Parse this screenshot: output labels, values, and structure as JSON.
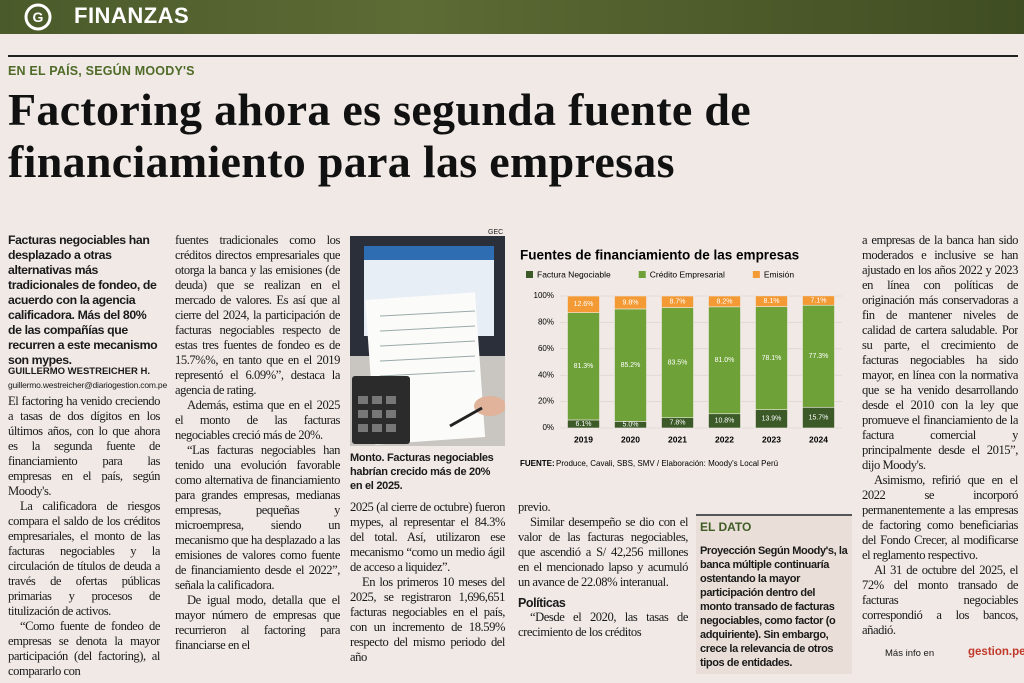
{
  "header": {
    "section": "FINANZAS"
  },
  "kicker": "EN EL PAÍS, SEGÚN MOODY'S",
  "headline": "Factoring ahora es segunda fuente de financiamiento para las empresas",
  "lead": "Facturas negociables han desplazado a otras alternativas más tradicionales de fondeo, de acuerdo con la agencia calificadora. Más del 80% de las compañías que recurren a este mecanismo son mypes.",
  "byline": {
    "author": "GUILLERMO WESTREICHER H.",
    "email": "guillermo.westreicher@diariogestion.com.pe"
  },
  "columns": [
    [
      "El factoring ha venido creciendo a tasas de dos dígitos en los últimos años, con lo que ahora es la segunda fuente de financiamiento para las empresas en el país, según Moody's.",
      "La calificadora de riesgos compara el saldo de los créditos empresariales, el monto de las facturas negociables y la circulación de títulos de deuda a través de ofertas públicas primarias y procesos de titulización de activos.",
      "“Como fuente de fondeo de empresas se denota la mayor participación (del factoring), al compararlo con"
    ],
    [
      "fuentes tradicionales como los créditos directos empresariales que otorga la banca y las emisiones (de deuda) que se realizan en el mercado de valores. Es así que al cierre del 2024, la participación de facturas negociables respecto de estas tres fuentes de fondeo es de 15.7%%, en tanto que en el 2019 representó el 6.09%”, destaca la agencia de rating.",
      "Además, estima que en el 2025 el monto de las facturas negociables creció más de 20%.",
      "“Las facturas negociables han tenido una evolución favorable como alternativa de financiamiento para grandes empresas, medianas empresas, pequeñas y microempresa, siendo un mecanismo que ha desplazado a las emisiones de valores como fuente de financiamiento desde el 2022”, señala la calificadora.",
      "De igual modo, detalla que el mayor número de empresas que recurrieron al factoring para financiarse en el"
    ],
    [
      "2025 (al cierre de octubre) fueron mypes, al representar el 84.3% del total. Así, utilizaron ese mecanismo “como un medio ágil de acceso a liquidez”.",
      "En los primeros 10 meses del 2025, se registraron 1,696,651 facturas negociables en el país, con un incremento de 18.59% respecto del mismo periodo del año"
    ],
    [
      "previo.",
      "Similar desempeño se dio con el valor de las facturas negociables, que ascendió a S/ 42,256 millones en el mencionado lapso y acumuló un avance de 22.08% interanual.",
      {
        "subhead": "Políticas"
      },
      "“Desde el 2020, las tasas de crecimiento de los créditos"
    ],
    [
      "a empresas de la banca han sido moderados e inclusive se han ajustado en los años 2022 y 2023 en línea con políticas de originación más conservadoras a fin de mantener niveles de calidad de cartera saludable. Por su parte, el crecimiento de facturas negociables ha sido mayor, en línea con la normativa que se ha venido desarrollando desde el 2010 con la ley que promueve el financiamiento de la factura comercial y principalmente desde el 2015”, dijo Moody's.",
      "Asimismo, refirió que en el 2022 se incorporó permanentemente a las empresas de factoring como beneficiarias del Fondo Crecer, al modificarse el reglamento respectivo.",
      "Al 31 de octubre del 2025, el 72% del monto transado de facturas negociables correspondió a los bancos, añadió."
    ]
  ],
  "photo": {
    "credit": "GEC",
    "caption_label": "Monto.",
    "caption": "Facturas negociables habrían crecido más de 20% en el 2025."
  },
  "chart": {
    "type": "bar",
    "stacked": true,
    "title": "Fuentes de financiamiento de las empresas",
    "categories": [
      "2019",
      "2020",
      "2021",
      "2022",
      "2023",
      "2024"
    ],
    "series": [
      {
        "name": "Factura Negociable",
        "color": "#3b5a27",
        "values": [
          6.1,
          5.0,
          7.8,
          10.8,
          13.9,
          15.7
        ],
        "value_labels": [
          "6.1%",
          "5.0%",
          "7.8%",
          "10.8%",
          "13.9%",
          "15.7%"
        ]
      },
      {
        "name": "Crédito Empresarial",
        "color": "#6ea238",
        "values": [
          81.3,
          85.2,
          83.5,
          81.0,
          78.1,
          77.3
        ],
        "value_labels": [
          "81.3%",
          "85.2%",
          "83.5%",
          "81.0%",
          "78.1%",
          "77.3%"
        ]
      },
      {
        "name": "Emisión",
        "color": "#f39a35",
        "values": [
          12.6,
          9.8,
          8.7,
          8.2,
          8.1,
          7.1
        ],
        "value_labels": [
          "12.6%",
          "9.8%",
          "8.7%",
          "8.2%",
          "8.1%",
          "7.1%"
        ]
      }
    ],
    "ylim": [
      0,
      100
    ],
    "yticks": [
      {
        "value": 0,
        "label": "0%"
      },
      {
        "value": 20,
        "label": "20%"
      },
      {
        "value": 40,
        "label": "40%"
      },
      {
        "value": 60,
        "label": "60%"
      },
      {
        "value": 80,
        "label": "80%"
      },
      {
        "value": 100,
        "label": "100%"
      }
    ],
    "source_label": "FUENTE:",
    "source": "Produce, Cavali, SBS, SMV / Elaboración: Moody's Local Perú"
  },
  "sidebar": {
    "label": "EL DATO",
    "heading": "Proyección",
    "text": "Según Moody's, la banca múltiple continuaría ostentando la mayor participación dentro del monto transado de facturas negociables, como factor (o adquiriente). Sin embargo, crece la relevancia de otros tipos de entidades."
  },
  "footer": {
    "more_info": "Más info en",
    "site": "gestion.pe"
  }
}
